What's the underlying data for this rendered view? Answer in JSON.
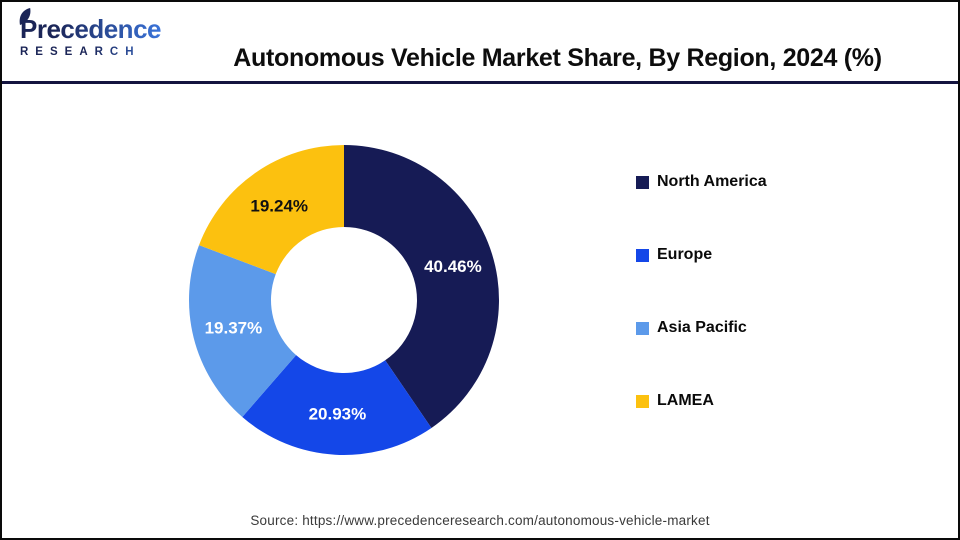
{
  "header": {
    "logo": {
      "brand": "Precedence",
      "sub": "RESEARCH"
    },
    "title": "Autonomous Vehicle Market Share, By Region, 2024 (%)"
  },
  "chart_data": {
    "type": "pie",
    "donut": true,
    "title": "Autonomous Vehicle Market Share, By Region, 2024 (%)",
    "units": "percent",
    "start_angle_deg": 0,
    "direction": "clockwise",
    "inner_radius_ratio": 0.47,
    "legend_position": "right",
    "slices": [
      {
        "label": "North America",
        "value": 40.46,
        "display": "40.46%",
        "color": "#161b55",
        "label_color": "#ffffff"
      },
      {
        "label": "Europe",
        "value": 20.93,
        "display": "20.93%",
        "color": "#1447e8",
        "label_color": "#ffffff"
      },
      {
        "label": "Asia Pacific",
        "value": 19.37,
        "display": "19.37%",
        "color": "#5c9aea",
        "label_color": "#ffffff"
      },
      {
        "label": "LAMEA",
        "value": 19.24,
        "display": "19.24%",
        "color": "#fcc10f",
        "label_color": "#111111"
      }
    ]
  },
  "footer": {
    "source": "Source: https://www.precedenceresearch.com/autonomous-vehicle-market"
  }
}
